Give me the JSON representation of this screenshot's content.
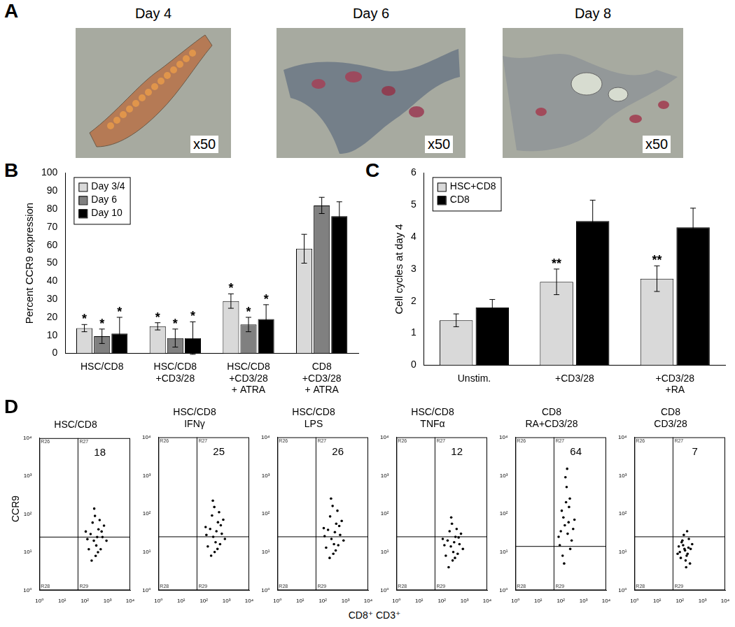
{
  "figure": {
    "panel_a": {
      "panel": "A",
      "images": [
        {
          "title": "Day 4",
          "magnification": "x50"
        },
        {
          "title": "Day 6",
          "magnification": "x50"
        },
        {
          "title": "Day 8",
          "magnification": "x50"
        }
      ]
    },
    "panel_d": {
      "panel": "D",
      "x_label": "CD8⁺ CD3⁺",
      "y_label": "CCR9"
    }
  },
  "chart_data": [
    {
      "panel": "B",
      "type": "bar",
      "y_label": "Percent CCR9 expression",
      "categories": [
        "HSC/CD8",
        [
          "HSC/CD8",
          "+CD3/28"
        ],
        [
          "HSC/CD8",
          "+CD3/28",
          "+ ATRA"
        ],
        [
          "CD8",
          "+CD3/28",
          "+ ATRA"
        ]
      ],
      "series": [
        {
          "name": "Day 3/4",
          "color": "#d9d9d9",
          "values": [
            14,
            15,
            29,
            58
          ],
          "errors": [
            2,
            2,
            4,
            8
          ],
          "significance": [
            "*",
            "*",
            "*",
            null
          ]
        },
        {
          "name": "Day 6",
          "color": "#808080",
          "values": [
            9.5,
            8.5,
            16,
            82
          ],
          "errors": [
            4,
            5,
            4,
            4.5
          ],
          "significance": [
            "*",
            "*",
            "*",
            null
          ]
        },
        {
          "name": "Day 10",
          "color": "#000000",
          "values": [
            11,
            8.5,
            19,
            76
          ],
          "errors": [
            9,
            9,
            8,
            8
          ],
          "significance": [
            "*",
            "*",
            "*",
            null
          ]
        }
      ],
      "ylim": [
        0,
        100
      ],
      "yticks": [
        0,
        10,
        20,
        30,
        40,
        50,
        60,
        70,
        80,
        90,
        100
      ],
      "grid": false,
      "legend": "upper left"
    },
    {
      "panel": "C",
      "type": "bar",
      "y_label": "Cell cycles at day 4",
      "categories": [
        "Unstim.",
        "+CD3/28",
        [
          "+CD3/28",
          "+RA"
        ]
      ],
      "series": [
        {
          "name": "HSC+CD8",
          "color": "#d9d9d9",
          "values": [
            1.4,
            2.6,
            2.7
          ],
          "errors": [
            0.2,
            0.4,
            0.4
          ],
          "significance": [
            null,
            "**",
            "**"
          ]
        },
        {
          "name": "CD8",
          "color": "#000000",
          "values": [
            1.8,
            4.5,
            4.3
          ],
          "errors": [
            0.25,
            0.65,
            0.6
          ],
          "significance": [
            null,
            null,
            null
          ]
        }
      ],
      "ylim": [
        0,
        6
      ],
      "yticks": [
        0,
        1,
        2,
        3,
        4,
        5,
        6
      ],
      "grid": false,
      "legend": "upper left"
    },
    {
      "type": "scatter",
      "title": [
        "HSC/CD8"
      ],
      "log": true,
      "color": "#000000",
      "xlim": [
        1,
        10000
      ],
      "ylim": [
        1,
        10000
      ],
      "xticks": [
        {
          "value": 1,
          "label": "10⁰"
        },
        {
          "value": 10,
          "label": "10¹"
        },
        {
          "value": 100,
          "label": "10²"
        },
        {
          "value": 1000,
          "label": "10³"
        },
        {
          "value": 10000,
          "label": "10⁴"
        }
      ],
      "yticks": [
        {
          "value": 1,
          "label": "10⁰"
        },
        {
          "value": 10,
          "label": "10¹"
        },
        {
          "value": 100,
          "label": "10²"
        },
        {
          "value": 1000,
          "label": "10³"
        },
        {
          "value": 10000,
          "label": "10⁴"
        }
      ],
      "gate": {
        "x": 50,
        "y": 25
      },
      "regions": [
        "R26",
        "R27",
        "R28",
        "R29"
      ],
      "quadrant_value": 18,
      "x": [
        250,
        180,
        320,
        400,
        150,
        600,
        220,
        300,
        500,
        130,
        700,
        350,
        280,
        200,
        450,
        900,
        110,
        550,
        260,
        380
      ],
      "values": [
        20,
        30,
        15,
        40,
        12,
        25,
        60,
        8,
        12,
        22,
        50,
        25,
        90,
        6,
        70,
        20,
        35,
        35,
        140,
        10
      ]
    },
    {
      "type": "scatter",
      "title": [
        "HSC/CD8",
        "IFNγ"
      ],
      "log": true,
      "color": "#000000",
      "xlim": [
        1,
        10000
      ],
      "ylim": [
        1,
        10000
      ],
      "xticks": [
        {
          "value": 1,
          "label": "10⁰"
        },
        {
          "value": 10,
          "label": "10¹"
        },
        {
          "value": 100,
          "label": "10²"
        },
        {
          "value": 1000,
          "label": "10³"
        },
        {
          "value": 10000,
          "label": "10⁴"
        }
      ],
      "yticks": [
        {
          "value": 1,
          "label": "10⁰"
        },
        {
          "value": 10,
          "label": "10¹"
        },
        {
          "value": 100,
          "label": "10²"
        },
        {
          "value": 1000,
          "label": "10³"
        },
        {
          "value": 10000,
          "label": "10⁴"
        }
      ],
      "gate": {
        "x": 50,
        "y": 25
      },
      "regions": [
        "R26",
        "R27",
        "R28",
        "R29"
      ],
      "quadrant_value": 25,
      "x": [
        260,
        190,
        330,
        420,
        150,
        620,
        230,
        300,
        520,
        130,
        720,
        360,
        290,
        210,
        470,
        850,
        120,
        560,
        250,
        400
      ],
      "values": [
        25,
        40,
        18,
        60,
        14,
        30,
        90,
        10,
        16,
        28,
        70,
        35,
        150,
        8,
        110,
        22,
        45,
        50,
        220,
        12
      ]
    },
    {
      "type": "scatter",
      "title": [
        "HSC/CD8",
        "LPS"
      ],
      "log": true,
      "color": "#000000",
      "xlim": [
        1,
        10000
      ],
      "ylim": [
        1,
        10000
      ],
      "xticks": [
        {
          "value": 1,
          "label": "10⁰"
        },
        {
          "value": 10,
          "label": "10¹"
        },
        {
          "value": 100,
          "label": "10²"
        },
        {
          "value": 1000,
          "label": "10³"
        },
        {
          "value": 10000,
          "label": "10⁴"
        }
      ],
      "yticks": [
        {
          "value": 1,
          "label": "10⁰"
        },
        {
          "value": 10,
          "label": "10¹"
        },
        {
          "value": 100,
          "label": "10²"
        },
        {
          "value": 1000,
          "label": "10³"
        },
        {
          "value": 10000,
          "label": "10⁴"
        }
      ],
      "gate": {
        "x": 50,
        "y": 25
      },
      "regions": [
        "R26",
        "R27",
        "R28",
        "R29"
      ],
      "quadrant_value": 26,
      "x": [
        240,
        170,
        310,
        390,
        140,
        580,
        210,
        290,
        480,
        120,
        680,
        340,
        270,
        200,
        440,
        820,
        110,
        530,
        230,
        370
      ],
      "values": [
        22,
        38,
        16,
        55,
        13,
        28,
        85,
        9,
        15,
        26,
        65,
        33,
        160,
        7,
        120,
        20,
        42,
        48,
        250,
        11
      ]
    },
    {
      "type": "scatter",
      "title": [
        "HSC/CD8",
        "TNFα"
      ],
      "log": true,
      "color": "#000000",
      "xlim": [
        1,
        10000
      ],
      "ylim": [
        1,
        10000
      ],
      "xticks": [
        {
          "value": 1,
          "label": "10⁰"
        },
        {
          "value": 10,
          "label": "10¹"
        },
        {
          "value": 100,
          "label": "10²"
        },
        {
          "value": 1000,
          "label": "10³"
        },
        {
          "value": 10000,
          "label": "10⁴"
        }
      ],
      "yticks": [
        {
          "value": 1,
          "label": "10⁰"
        },
        {
          "value": 10,
          "label": "10¹"
        },
        {
          "value": 100,
          "label": "10²"
        },
        {
          "value": 1000,
          "label": "10³"
        },
        {
          "value": 10000,
          "label": "10⁴"
        }
      ],
      "gate": {
        "x": 50,
        "y": 25
      },
      "regions": [
        "R26",
        "R27",
        "R28",
        "R29"
      ],
      "quadrant_value": 12,
      "x": [
        250,
        180,
        320,
        400,
        150,
        600,
        220,
        300,
        500,
        130,
        700,
        350,
        280,
        200,
        450,
        850,
        110,
        550,
        260,
        380
      ],
      "values": [
        14,
        20,
        10,
        25,
        8,
        16,
        35,
        6,
        9,
        15,
        30,
        18,
        55,
        4,
        40,
        12,
        22,
        24,
        80,
        7
      ]
    },
    {
      "type": "scatter",
      "title": [
        "CD8",
        "RA+CD3/28"
      ],
      "log": true,
      "color": "#000000",
      "xlim": [
        1,
        10000
      ],
      "ylim": [
        1,
        10000
      ],
      "xticks": [
        {
          "value": 1,
          "label": "10⁰"
        },
        {
          "value": 10,
          "label": "10¹"
        },
        {
          "value": 100,
          "label": "10²"
        },
        {
          "value": 1000,
          "label": "10³"
        },
        {
          "value": 10000,
          "label": "10⁴"
        }
      ],
      "yticks": [
        {
          "value": 1,
          "label": "10⁰"
        },
        {
          "value": 10,
          "label": "10¹"
        },
        {
          "value": 100,
          "label": "10²"
        },
        {
          "value": 1000,
          "label": "10³"
        },
        {
          "value": 10000,
          "label": "10⁴"
        }
      ],
      "gate": {
        "x": 50,
        "y": 14
      },
      "regions": [
        "R26",
        "R27",
        "R28",
        "R29"
      ],
      "quadrant_value": 64,
      "x": [
        150,
        110,
        200,
        250,
        90,
        180,
        130,
        300,
        160,
        220,
        120,
        350,
        170,
        140,
        260,
        100,
        190,
        230,
        80,
        400
      ],
      "values": [
        50,
        120,
        30,
        250,
        15,
        500,
        80,
        20,
        900,
        60,
        8,
        40,
        200,
        5,
        12,
        35,
        1500,
        150,
        25,
        70
      ]
    },
    {
      "type": "scatter",
      "title": [
        "CD8",
        "CD3/28"
      ],
      "log": true,
      "color": "#000000",
      "xlim": [
        1,
        10000
      ],
      "ylim": [
        1,
        10000
      ],
      "xticks": [
        {
          "value": 1,
          "label": "10⁰"
        },
        {
          "value": 10,
          "label": "10¹"
        },
        {
          "value": 100,
          "label": "10²"
        },
        {
          "value": 1000,
          "label": "10³"
        },
        {
          "value": 10000,
          "label": "10⁴"
        }
      ],
      "yticks": [
        {
          "value": 1,
          "label": "10⁰"
        },
        {
          "value": 10,
          "label": "10¹"
        },
        {
          "value": 100,
          "label": "10²"
        },
        {
          "value": 1000,
          "label": "10³"
        },
        {
          "value": 10000,
          "label": "10⁴"
        }
      ],
      "gate": {
        "x": 50,
        "y": 25
      },
      "regions": [
        "R26",
        "R27",
        "R28",
        "R29"
      ],
      "quadrant_value": 7,
      "x": [
        160,
        120,
        200,
        250,
        100,
        180,
        140,
        300,
        150,
        220,
        90,
        280,
        130,
        170,
        350,
        110,
        210,
        190,
        240,
        80
      ],
      "values": [
        12,
        18,
        8,
        22,
        10,
        6,
        15,
        12,
        28,
        9,
        14,
        5,
        20,
        11,
        16,
        7,
        35,
        4,
        13,
        9
      ]
    }
  ]
}
